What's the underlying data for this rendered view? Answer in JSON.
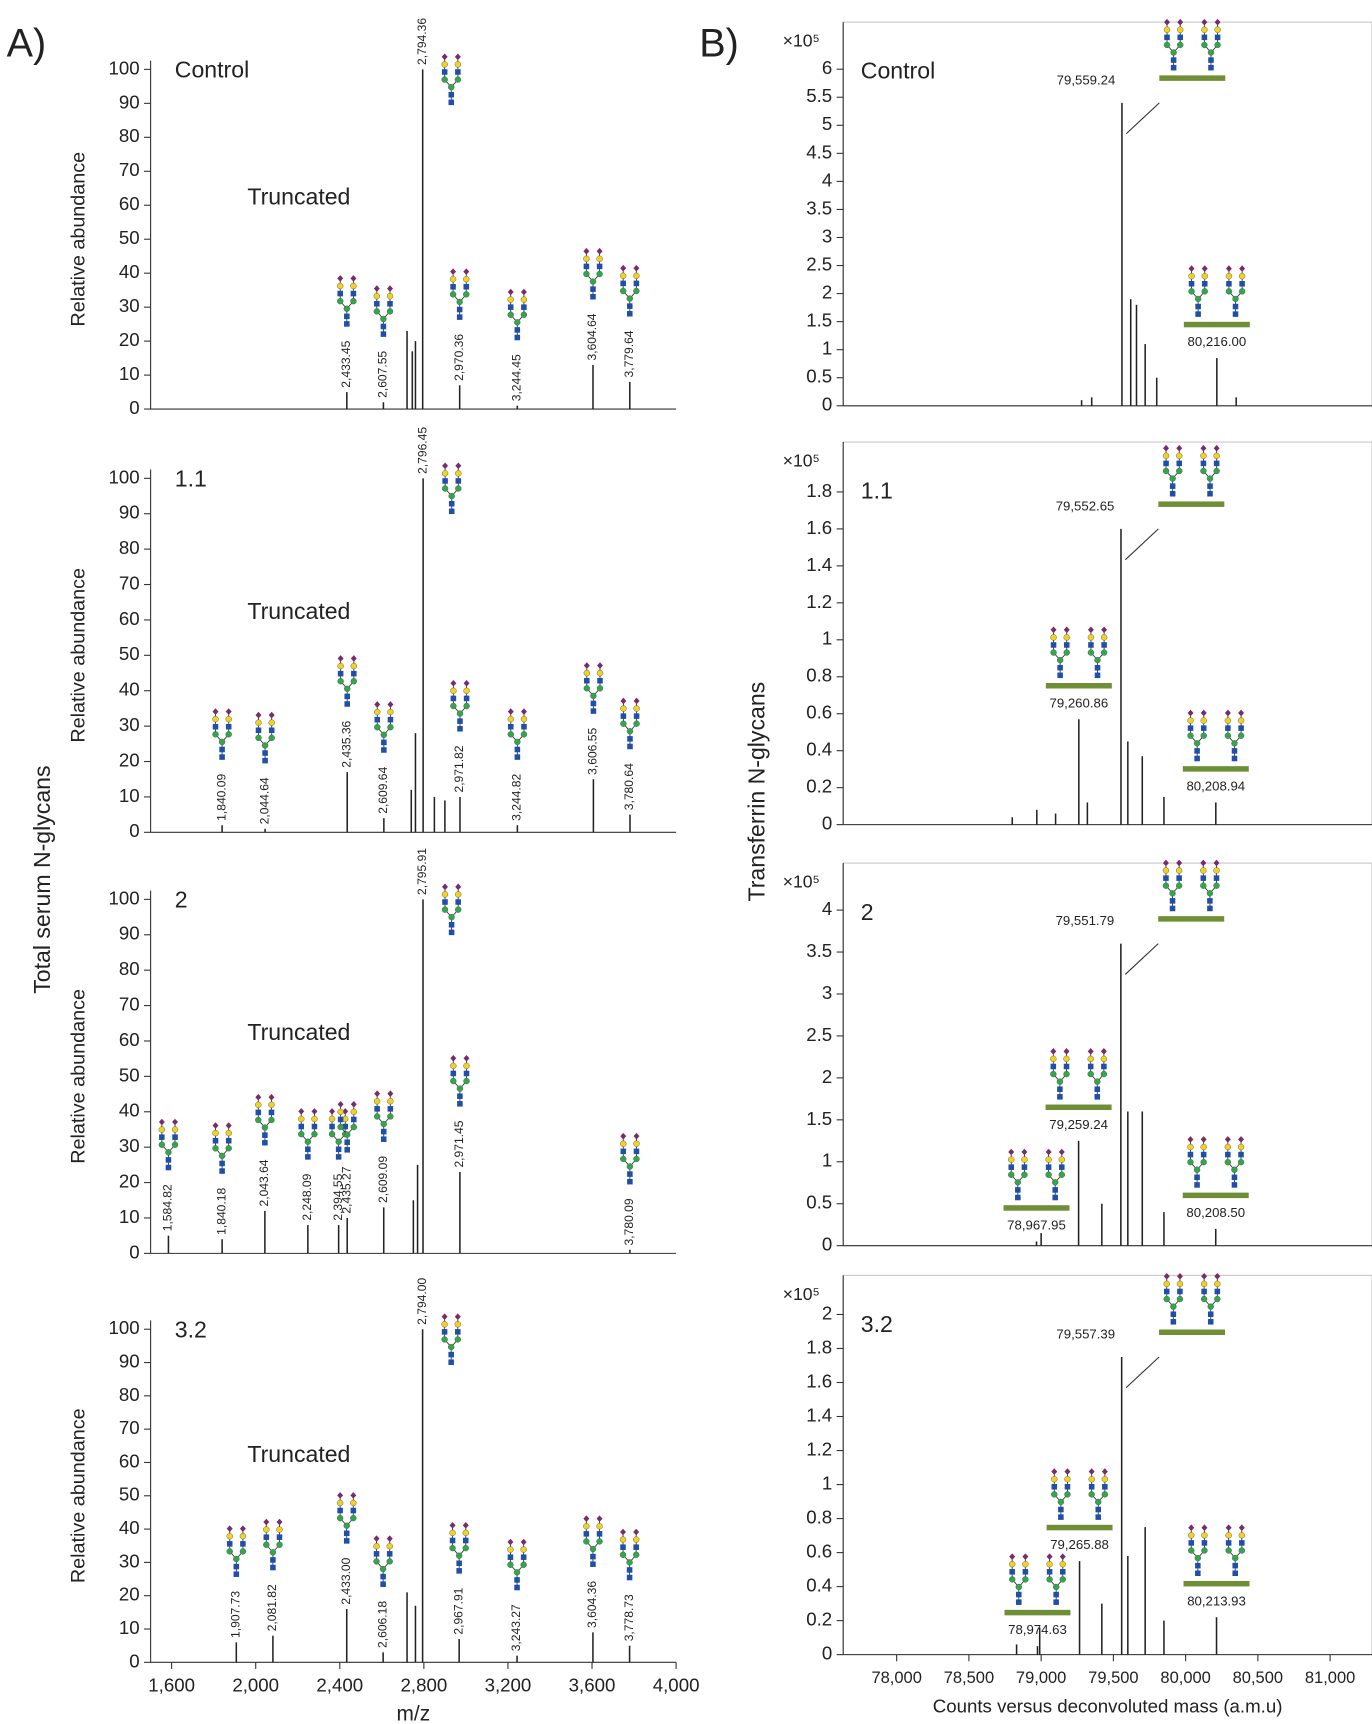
{
  "figure": {
    "panel_a_label": "A)",
    "panel_b_label": "B)",
    "left_ylabel": "Total serum N-glycans",
    "right_ylabel": "Transferrin N-glycans"
  },
  "chart_data": [
    {
      "type": "stem",
      "annotation": "Control",
      "note": "Truncated",
      "ylabel": "Relative abundance",
      "color": "#222222",
      "xlim": [
        1500,
        4000
      ],
      "ylim": [
        0,
        100
      ],
      "yticks": [
        0,
        10,
        20,
        30,
        40,
        50,
        60,
        70,
        80,
        90,
        100
      ],
      "x": [
        2433.45,
        2607.55,
        2720,
        2745,
        2760,
        2794.36,
        2970.36,
        3244.45,
        3604.64,
        3779.64
      ],
      "values": [
        5,
        2,
        23,
        17,
        20,
        100,
        7,
        1,
        13,
        8
      ],
      "peak_labels": [
        "2,433.45",
        "2,607.55",
        null,
        null,
        null,
        "2,794.36",
        "2,970.36",
        "3,244.45",
        "3,604.64",
        "3,779.64"
      ]
    },
    {
      "type": "stem",
      "annotation": "1.1",
      "note": "Truncated",
      "ylabel": "Relative abundance",
      "color": "#222222",
      "xlim": [
        1500,
        4000
      ],
      "ylim": [
        0,
        100
      ],
      "yticks": [
        0,
        10,
        20,
        30,
        40,
        50,
        60,
        70,
        80,
        90,
        100
      ],
      "x": [
        1840.09,
        2044.64,
        2435.36,
        2609.64,
        2740,
        2760,
        2796.45,
        2850,
        2900,
        2971.82,
        3244.82,
        3606.55,
        3780.64
      ],
      "values": [
        2,
        1,
        17,
        4,
        12,
        28,
        100,
        10,
        9,
        10,
        2,
        15,
        5
      ],
      "peak_labels": [
        "1,840.09",
        "2,044.64",
        "2,435.36",
        "2,609.64",
        null,
        null,
        "2,796.45",
        null,
        null,
        "2,971.82",
        "3,244.82",
        "3,606.55",
        "3,780.64"
      ]
    },
    {
      "type": "stem",
      "annotation": "2",
      "note": "Truncated",
      "ylabel": "Relative abundance",
      "color": "#222222",
      "xlim": [
        1500,
        4000
      ],
      "ylim": [
        0,
        100
      ],
      "yticks": [
        0,
        10,
        20,
        30,
        40,
        50,
        60,
        70,
        80,
        90,
        100
      ],
      "x": [
        1584.82,
        1840.18,
        2043.64,
        2248.09,
        2394.55,
        2435.27,
        2609.09,
        2750,
        2770,
        2795.91,
        2971.45,
        3780.09
      ],
      "values": [
        5,
        4,
        12,
        8,
        8,
        10,
        13,
        15,
        25,
        100,
        23,
        1
      ],
      "peak_labels": [
        "1,584.82",
        "1,840.18",
        "2,043.64",
        "2,248.09",
        "2,394.55",
        "2,435.27",
        "2,609.09",
        null,
        null,
        "2,795.91",
        "2,971.45",
        "3,780.09"
      ]
    },
    {
      "type": "stem",
      "annotation": "3.2",
      "note": "Truncated",
      "ylabel": "Relative abundance",
      "xlabel": "m/z",
      "color": "#222222",
      "xlim": [
        1500,
        4000
      ],
      "ylim": [
        0,
        100
      ],
      "yticks": [
        0,
        10,
        20,
        30,
        40,
        50,
        60,
        70,
        80,
        90,
        100
      ],
      "xticks": [
        {
          "value": 1600,
          "label": "1,600"
        },
        {
          "value": 2000,
          "label": "2,000"
        },
        {
          "value": 2400,
          "label": "2,400"
        },
        {
          "value": 2800,
          "label": "2,800"
        },
        {
          "value": 3200,
          "label": "3,200"
        },
        {
          "value": 3600,
          "label": "3,600"
        },
        {
          "value": 4000,
          "label": "4,000"
        }
      ],
      "x": [
        1907.73,
        2081.82,
        2433.0,
        2606.18,
        2720,
        2760,
        2794.0,
        2967.91,
        3243.27,
        3604.36,
        3778.73
      ],
      "values": [
        6,
        8,
        16,
        3,
        21,
        17,
        100,
        7,
        2,
        9,
        5
      ],
      "peak_labels": [
        "1,907.73",
        "2,081.82",
        "2,433.00",
        "2,606.18",
        null,
        null,
        "2,794.00",
        "2,967.91",
        "3,243.27",
        "3,604.36",
        "3,778.73"
      ]
    },
    {
      "type": "stem",
      "annotation": "Control",
      "y_multiplier": "×10⁵",
      "color": "#222222",
      "xlim": [
        77630,
        81290
      ],
      "ylim": [
        0,
        6.84
      ],
      "yticks": [
        0,
        0.5,
        1,
        1.5,
        2,
        2.5,
        3,
        3.5,
        4,
        4.5,
        5,
        5.5,
        6
      ],
      "x": [
        79280,
        79350,
        79559.24,
        79620,
        79660,
        79720,
        79800,
        80216.0,
        80350
      ],
      "values": [
        0.1,
        0.15,
        5.4,
        1.9,
        1.8,
        1.1,
        0.5,
        0.85,
        0.15
      ],
      "peak_labels": [
        null,
        null,
        "79,559.24",
        null,
        null,
        null,
        null,
        "80,216.00",
        null
      ]
    },
    {
      "type": "stem",
      "annotation": "1.1",
      "y_multiplier": "×10⁵",
      "color": "#222222",
      "xlim": [
        77630,
        81290
      ],
      "ylim": [
        0,
        2.07
      ],
      "yticks": [
        0,
        0.2,
        0.4,
        0.6,
        0.8,
        1,
        1.2,
        1.4,
        1.6,
        1.8
      ],
      "x": [
        78800,
        78970,
        79100,
        79260.86,
        79320,
        79552.65,
        79600,
        79700,
        79850,
        80208.94
      ],
      "values": [
        0.04,
        0.08,
        0.06,
        0.57,
        0.12,
        1.6,
        0.45,
        0.37,
        0.15,
        0.12
      ],
      "peak_labels": [
        null,
        null,
        null,
        "79,260.86",
        null,
        "79,552.65",
        null,
        null,
        null,
        "80,208.94"
      ]
    },
    {
      "type": "stem",
      "annotation": "2",
      "y_multiplier": "×10⁵",
      "color": "#222222",
      "xlim": [
        77630,
        81290
      ],
      "ylim": [
        0,
        4.56
      ],
      "yticks": [
        0,
        0.5,
        1,
        1.5,
        2,
        2.5,
        3,
        3.5,
        4
      ],
      "x": [
        78967.95,
        79000,
        79259.24,
        79420,
        79551.79,
        79600,
        79700,
        79850,
        80208.5
      ],
      "values": [
        0.05,
        0.15,
        1.25,
        0.5,
        3.6,
        1.6,
        1.6,
        0.4,
        0.2
      ],
      "peak_labels": [
        "78,967.95",
        null,
        "79,259.24",
        null,
        "79,551.79",
        null,
        null,
        null,
        "80,208.50"
      ]
    },
    {
      "type": "stem",
      "annotation": "3.2",
      "y_multiplier": "×10⁵",
      "xlabel": "Counts versus deconvoluted mass (a.m.u)",
      "color": "#222222",
      "xlim": [
        77630,
        81290
      ],
      "ylim": [
        0,
        2.23
      ],
      "yticks": [
        0,
        0.2,
        0.4,
        0.6,
        0.8,
        1,
        1.2,
        1.4,
        1.6,
        1.8,
        2
      ],
      "xticks": [
        {
          "value": 78000,
          "label": "78,000"
        },
        {
          "value": 78500,
          "label": "78,500"
        },
        {
          "value": 79000,
          "label": "79,000"
        },
        {
          "value": 79500,
          "label": "79,500"
        },
        {
          "value": 80000,
          "label": "80,000"
        },
        {
          "value": 80500,
          "label": "80,500"
        },
        {
          "value": 81000,
          "label": "81,000"
        }
      ],
      "x": [
        78830,
        78974.63,
        78990,
        79265.88,
        79420,
        79557.39,
        79600,
        79720,
        79850,
        80213.93
      ],
      "values": [
        0.06,
        0.05,
        0.16,
        0.55,
        0.3,
        1.75,
        0.58,
        0.75,
        0.2,
        0.22
      ],
      "peak_labels": [
        null,
        "78,974.63",
        null,
        "79,265.88",
        null,
        "79,557.39",
        null,
        null,
        null,
        "80,213.93"
      ]
    }
  ]
}
